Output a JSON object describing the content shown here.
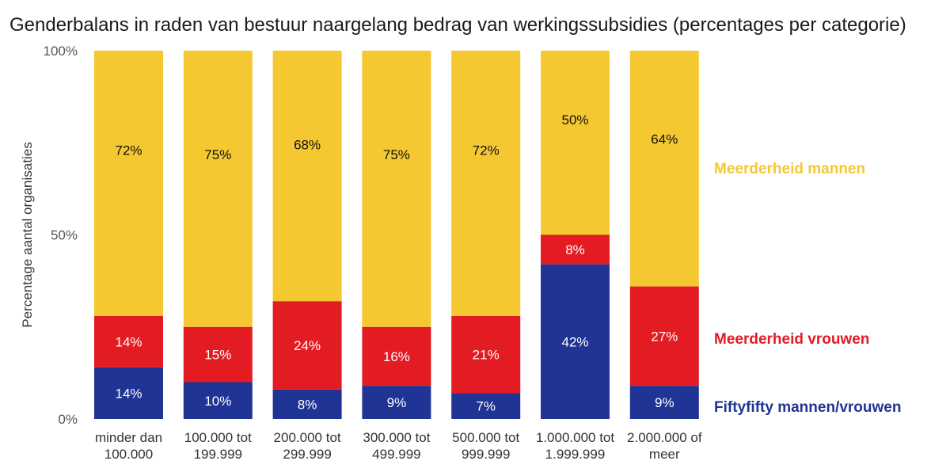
{
  "chart_data": {
    "type": "bar",
    "stacked": true,
    "title": "Genderbalans in raden van bestuur naargelang bedrag van werkingssubsidies (percentages per categorie)",
    "ylabel": "Percentage aantal organisaties",
    "xlabel": "",
    "ylim": [
      0,
      100
    ],
    "yticks": [
      "0%",
      "50%",
      "100%"
    ],
    "categories": [
      [
        "minder dan",
        "100.000"
      ],
      [
        "100.000 tot",
        "199.999"
      ],
      [
        "200.000 tot",
        "299.999"
      ],
      [
        "300.000 tot",
        "499.999"
      ],
      [
        "500.000 tot",
        "999.999"
      ],
      [
        "1.000.000 tot",
        "1.999.999"
      ],
      [
        "2.000.000 of",
        "meer"
      ]
    ],
    "series": [
      {
        "name": "Fiftyfifty mannen/vrouwen",
        "color": "#1f3494",
        "label_color": "#ffffff",
        "values": [
          14,
          10,
          8,
          9,
          7,
          42,
          9
        ]
      },
      {
        "name": "Meerderheid vrouwen",
        "color": "#e31b23",
        "label_color": "#ffffff",
        "values": [
          14,
          15,
          24,
          16,
          21,
          8,
          27
        ]
      },
      {
        "name": "Meerderheid mannen",
        "color": "#f5c731",
        "label_color": "#111111",
        "values": [
          72,
          75,
          68,
          75,
          72,
          50,
          64
        ]
      }
    ],
    "legend_placement": "right, aligned with segments",
    "grid": false
  }
}
